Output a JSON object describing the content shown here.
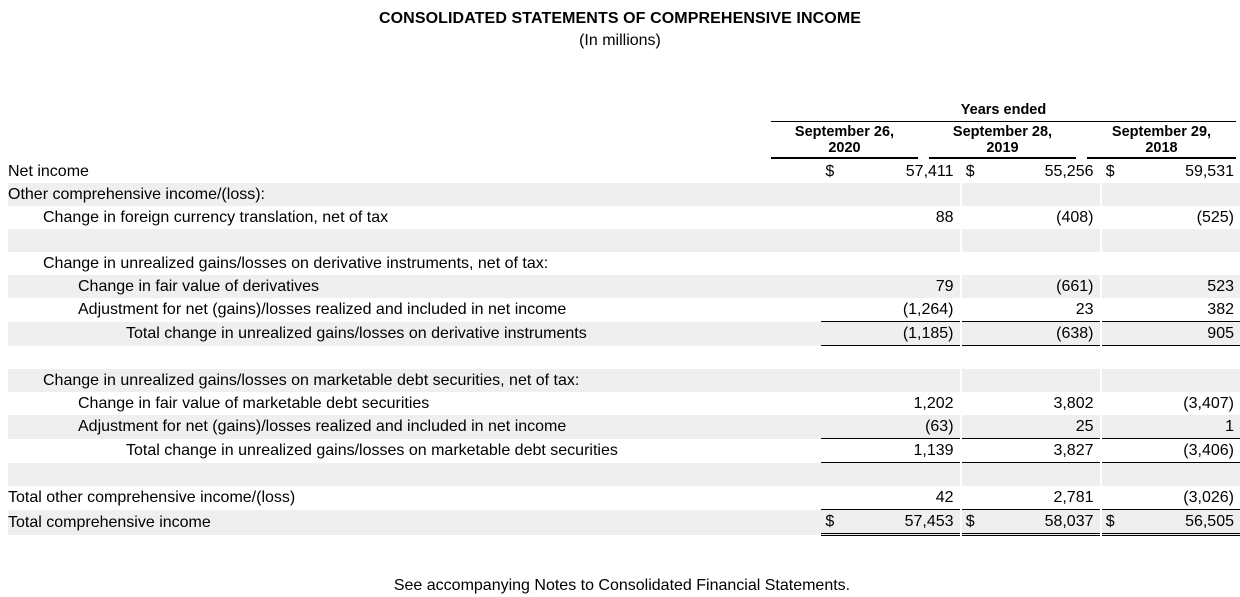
{
  "title": "CONSOLIDATED STATEMENTS OF COMPREHENSIVE INCOME",
  "subtitle": "(In millions)",
  "column_group": "Years ended",
  "columns": [
    {
      "line1": "September 26,",
      "line2": "2020"
    },
    {
      "line1": "September 28,",
      "line2": "2019"
    },
    {
      "line1": "September 29,",
      "line2": "2018"
    }
  ],
  "currency_symbol": "$",
  "rows": {
    "net_income": {
      "label": "Net income",
      "values": [
        "57,411",
        "55,256",
        "59,531"
      ]
    },
    "oci_header": {
      "label": "Other comprehensive income/(loss):"
    },
    "fx": {
      "label": "Change in foreign currency translation, net of tax",
      "values": [
        "88",
        "(408)",
        "(525)"
      ]
    },
    "deriv_header": {
      "label": "Change in unrealized gains/losses on derivative instruments, net of tax:"
    },
    "deriv_fv": {
      "label": "Change in fair value of derivatives",
      "values": [
        "79",
        "(661)",
        "523"
      ]
    },
    "deriv_adj": {
      "label": "Adjustment for net (gains)/losses realized and included in net income",
      "values": [
        "(1,264)",
        "23",
        "382"
      ]
    },
    "deriv_total": {
      "label": "Total change in unrealized gains/losses on derivative instruments",
      "values": [
        "(1,185)",
        "(638)",
        "905"
      ]
    },
    "mkt_header": {
      "label": "Change in unrealized gains/losses on marketable debt securities, net of tax:"
    },
    "mkt_fv": {
      "label": "Change in fair value of marketable debt securities",
      "values": [
        "1,202",
        "3,802",
        "(3,407)"
      ]
    },
    "mkt_adj": {
      "label": "Adjustment for net (gains)/losses realized and included in net income",
      "values": [
        "(63)",
        "25",
        "1"
      ]
    },
    "mkt_total": {
      "label": "Total change in unrealized gains/losses on marketable debt securities",
      "values": [
        "1,139",
        "3,827",
        "(3,406)"
      ]
    },
    "total_oci": {
      "label": "Total other comprehensive income/(loss)",
      "values": [
        "42",
        "2,781",
        "(3,026)"
      ]
    },
    "total_ci": {
      "label": "Total comprehensive income",
      "values": [
        "57,453",
        "58,037",
        "56,505"
      ]
    }
  },
  "footnote": "See accompanying Notes to Consolidated Financial Statements."
}
